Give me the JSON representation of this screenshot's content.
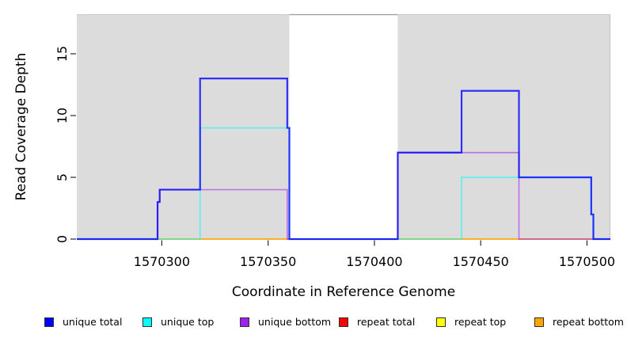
{
  "chart_data": {
    "type": "line",
    "subtype": "step-coverage",
    "title": "",
    "xlabel": "Coordinate in Reference Genome",
    "ylabel": "Read Coverage Depth",
    "xlim": [
      1570260,
      1570511
    ],
    "ylim": [
      0,
      18.2
    ],
    "xticks": [
      1570300,
      1570350,
      1570400,
      1570450,
      1570500
    ],
    "yticks": [
      0,
      5,
      10,
      15
    ],
    "grid": false,
    "legend_position": "bottom-horizontal",
    "plot_background_color": "#dcdcdc",
    "gap_background_color": "#ffffff",
    "shaded_regions": [
      {
        "x0": 1570260,
        "x1": 1570360
      },
      {
        "x0": 1570411,
        "x1": 1570511
      }
    ],
    "gap_top_edge": {
      "x0": 1570360,
      "x1": 1570411
    },
    "series": [
      {
        "name": "repeat total",
        "color": "#FF0000",
        "opacity": 0.55,
        "width": 1.7,
        "steps": [
          [
            1570260,
            0
          ]
        ]
      },
      {
        "name": "repeat top",
        "color": "#FFFF00",
        "opacity": 0.55,
        "width": 1.7,
        "steps": [
          [
            1570260,
            0
          ]
        ]
      },
      {
        "name": "repeat bottom",
        "color": "#FFA500",
        "opacity": 0.55,
        "width": 1.7,
        "steps": [
          [
            1570260,
            0
          ]
        ]
      },
      {
        "name": "unique bottom",
        "color": "#A020F0",
        "opacity": 0.55,
        "width": 1.7,
        "steps": [
          [
            1570260,
            0
          ],
          [
            1570298,
            3
          ],
          [
            1570299,
            4
          ],
          [
            1570359,
            0
          ],
          [
            1570411,
            7
          ],
          [
            1570468,
            0
          ]
        ]
      },
      {
        "name": "unique top",
        "color": "#00FFFF",
        "opacity": 0.55,
        "width": 1.7,
        "steps": [
          [
            1570260,
            0
          ],
          [
            1570318,
            9
          ],
          [
            1570360,
            0
          ],
          [
            1570441,
            5
          ],
          [
            1570502,
            2
          ],
          [
            1570503,
            0
          ]
        ]
      },
      {
        "name": "unique total",
        "color": "#0000FF",
        "opacity": 0.78,
        "width": 2.2,
        "steps": [
          [
            1570260,
            0
          ],
          [
            1570298,
            3
          ],
          [
            1570299,
            4
          ],
          [
            1570318,
            13
          ],
          [
            1570359,
            9
          ],
          [
            1570360,
            0
          ],
          [
            1570411,
            7
          ],
          [
            1570441,
            12
          ],
          [
            1570468,
            5
          ],
          [
            1570502,
            2
          ],
          [
            1570503,
            0
          ]
        ]
      }
    ]
  },
  "legend": {
    "items": [
      {
        "label": "unique total",
        "color": "#0000FF"
      },
      {
        "label": "unique top",
        "color": "#00FFFF"
      },
      {
        "label": "unique bottom",
        "color": "#A020F0"
      },
      {
        "label": "repeat total",
        "color": "#FF0000"
      },
      {
        "label": "repeat top",
        "color": "#FFFF00"
      },
      {
        "label": "repeat bottom",
        "color": "#FFA500"
      }
    ]
  }
}
